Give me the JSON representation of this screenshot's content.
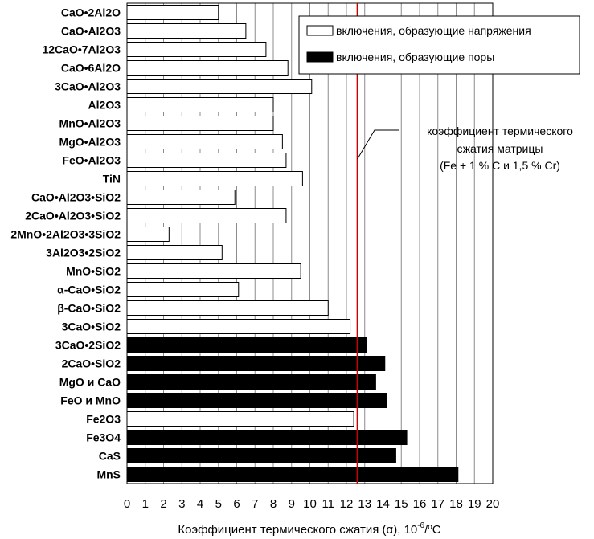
{
  "chart_data": {
    "type": "bar",
    "orientation": "horizontal",
    "categories": [
      "CaO•2Al2O",
      "CaO•Al2O3",
      "12CaO•7Al2O3",
      "CaO•6Al2O",
      "3CaO•Al2O3",
      "Al2O3",
      "MnO•Al2O3",
      "MgO•Al2O3",
      "FeO•Al2O3",
      "TiN",
      "CaO•Al2O3•SiO2",
      "2CaO•Al2O3•SiO2",
      "2MnO•2Al2O3•3SiO2",
      "3Al2O3•2SiO2",
      "MnO•SiO2",
      "α-CaO•SiO2",
      "β-CaO•SiO2",
      "3CaO•SiO2",
      "3CaO•2SiO2",
      "2CaO•SiO2",
      "MgO и CaO",
      "FeO и MnO",
      "Fe2O3",
      "Fe3O4",
      "CaS",
      "MnS"
    ],
    "values": [
      5.0,
      6.5,
      7.6,
      8.8,
      10.1,
      8.0,
      8.0,
      8.5,
      8.7,
      9.6,
      5.9,
      8.7,
      2.3,
      5.2,
      9.5,
      6.1,
      11.0,
      12.2,
      13.1,
      14.1,
      13.6,
      14.2,
      12.4,
      15.3,
      14.7,
      18.1
    ],
    "groups": [
      "stress",
      "stress",
      "stress",
      "stress",
      "stress",
      "stress",
      "stress",
      "stress",
      "stress",
      "stress",
      "stress",
      "stress",
      "stress",
      "stress",
      "stress",
      "stress",
      "stress",
      "stress",
      "pores",
      "pores",
      "pores",
      "pores",
      "stress",
      "pores",
      "pores",
      "pores"
    ],
    "xticks": [
      "0",
      "1",
      "2",
      "3",
      "4",
      "5",
      "6",
      "7",
      "8",
      "9",
      "10",
      "11",
      "12",
      "13",
      "14",
      "15",
      "16",
      "17",
      "18",
      "19",
      "20"
    ],
    "xlim": [
      0,
      20
    ],
    "xlabel_main": "Коэффициент термического сжатия (α), 10",
    "xlabel_exp": "-6",
    "xlabel_unit": "/ºC",
    "legend": [
      {
        "key": "stress",
        "label": "включения, образующие напряжения",
        "color": "#ffffff"
      },
      {
        "key": "pores",
        "label": "включения, образующие поры",
        "color": "#000000"
      }
    ],
    "reference_line": {
      "value": 12.6,
      "color": "#cc0000",
      "annotation": [
        "коэффициент термического",
        "сжатия матрицы",
        "(Fe +  1 % C и 1,5 % Cr)"
      ]
    },
    "grid": "vertical",
    "legend_position": "top-right"
  }
}
